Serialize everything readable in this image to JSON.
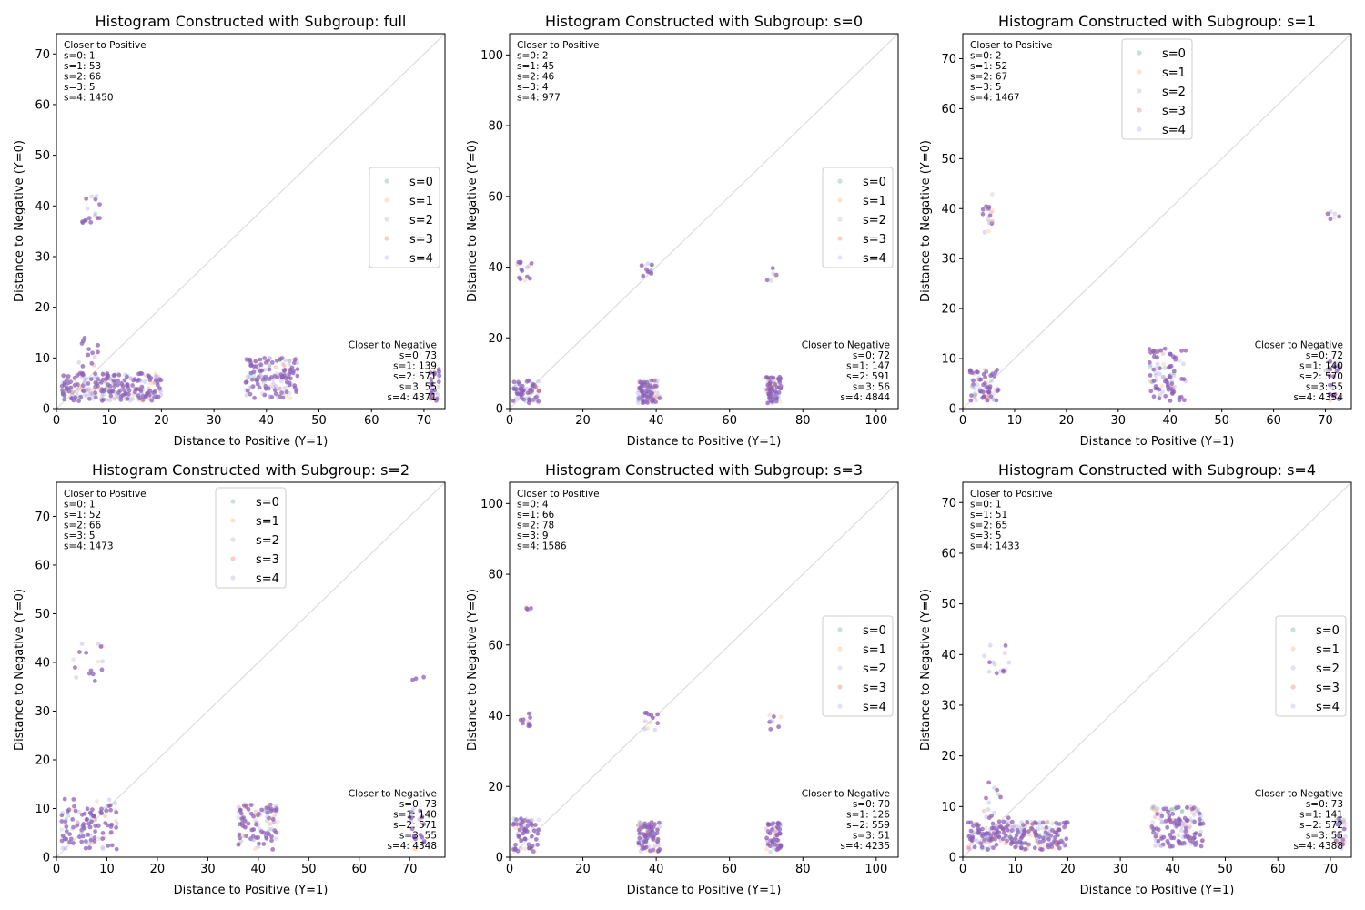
{
  "legend_labels": [
    "s=0",
    "s=1",
    "s=2",
    "s=3",
    "s=4"
  ],
  "series_colors": [
    "#4a9a8e",
    "#f5a55a",
    "#a6a2c8",
    "#e35b62",
    "#a79ad6"
  ],
  "point_color": "#8e60b8",
  "diagonal_color": "#dddddd",
  "chart_data": [
    {
      "type": "scatter",
      "title": "Histogram Constructed with Subgroup: full",
      "xlabel": "Distance to Positive (Y=1)",
      "ylabel": "Distance to Negative (Y=0)",
      "xlim": [
        0,
        74
      ],
      "ylim": [
        0,
        74
      ],
      "xticks": [
        0,
        10,
        20,
        30,
        40,
        50,
        60,
        70
      ],
      "yticks": [
        0,
        10,
        20,
        30,
        40,
        50,
        60,
        70
      ],
      "legend_position": "center-right",
      "annotation_positive": {
        "heading": "Closer to Positive",
        "lines": [
          "s=0: 1",
          "s=1: 53",
          "s=2: 66",
          "s=3: 5",
          "s=4: 1450"
        ]
      },
      "annotation_negative": {
        "heading": "Closer to Negative",
        "lines": [
          "s=0: 73",
          "s=1: 139",
          "s=2: 571",
          "s=3: 55",
          "s=4: 4371"
        ]
      },
      "clusters": [
        {
          "x": [
            1,
            20
          ],
          "y": [
            1.5,
            7
          ],
          "n": 260
        },
        {
          "x": [
            4,
            8
          ],
          "y": [
            7,
            14
          ],
          "n": 14
        },
        {
          "x": [
            4,
            9
          ],
          "y": [
            36,
            42
          ],
          "n": 16
        },
        {
          "x": [
            36,
            46
          ],
          "y": [
            2,
            10
          ],
          "n": 150
        },
        {
          "x": [
            71,
            73
          ],
          "y": [
            1.5,
            8
          ],
          "n": 26
        }
      ]
    },
    {
      "type": "scatter",
      "title": "Histogram Constructed with Subgroup: s=0",
      "xlabel": "Distance to Positive (Y=1)",
      "ylabel": "Distance to Negative (Y=0)",
      "xlim": [
        0,
        106
      ],
      "ylim": [
        0,
        106
      ],
      "xticks": [
        0,
        20,
        40,
        60,
        80,
        100
      ],
      "yticks": [
        0,
        20,
        40,
        60,
        80,
        100
      ],
      "legend_position": "center-right",
      "annotation_positive": {
        "heading": "Closer to Positive",
        "lines": [
          "s=0: 2",
          "s=1: 45",
          "s=2: 46",
          "s=3: 4",
          "s=4: 977"
        ]
      },
      "annotation_negative": {
        "heading": "Closer to Negative",
        "lines": [
          "s=0: 72",
          "s=1: 147",
          "s=2: 591",
          "s=3: 56",
          "s=4: 4844"
        ]
      },
      "clusters": [
        {
          "x": [
            1,
            8
          ],
          "y": [
            1.5,
            8
          ],
          "n": 70
        },
        {
          "x": [
            2,
            6
          ],
          "y": [
            36,
            42
          ],
          "n": 14
        },
        {
          "x": [
            35,
            41
          ],
          "y": [
            1.5,
            8
          ],
          "n": 90
        },
        {
          "x": [
            36,
            39
          ],
          "y": [
            36,
            41
          ],
          "n": 12
        },
        {
          "x": [
            70,
            74
          ],
          "y": [
            1.5,
            9
          ],
          "n": 90
        },
        {
          "x": [
            70,
            73
          ],
          "y": [
            36,
            40
          ],
          "n": 6
        }
      ]
    },
    {
      "type": "scatter",
      "title": "Histogram Constructed with Subgroup: s=1",
      "xlabel": "Distance to Positive (Y=1)",
      "ylabel": "Distance to Negative (Y=0)",
      "xlim": [
        0,
        75
      ],
      "ylim": [
        0,
        75
      ],
      "xticks": [
        0,
        10,
        20,
        30,
        40,
        50,
        60,
        70
      ],
      "yticks": [
        0,
        10,
        20,
        30,
        40,
        50,
        60,
        70
      ],
      "legend_position": "top-center",
      "annotation_positive": {
        "heading": "Closer to Positive",
        "lines": [
          "s=0: 2",
          "s=1: 52",
          "s=2: 67",
          "s=3: 5",
          "s=4: 1467"
        ]
      },
      "annotation_negative": {
        "heading": "Closer to Negative",
        "lines": [
          "s=0: 72",
          "s=1: 140",
          "s=2: 570",
          "s=3: 55",
          "s=4: 4354"
        ]
      },
      "clusters": [
        {
          "x": [
            1,
            7
          ],
          "y": [
            1.5,
            8
          ],
          "n": 70
        },
        {
          "x": [
            3,
            6
          ],
          "y": [
            35,
            43
          ],
          "n": 16
        },
        {
          "x": [
            36,
            43
          ],
          "y": [
            1.5,
            12
          ],
          "n": 90
        },
        {
          "x": [
            70,
            73
          ],
          "y": [
            1.5,
            10
          ],
          "n": 24
        },
        {
          "x": [
            70,
            73
          ],
          "y": [
            36,
            40
          ],
          "n": 6
        }
      ]
    },
    {
      "type": "scatter",
      "title": "Histogram Constructed with Subgroup: s=2",
      "xlabel": "Distance to Positive (Y=1)",
      "ylabel": "Distance to Negative (Y=0)",
      "xlim": [
        0,
        77
      ],
      "ylim": [
        0,
        77
      ],
      "xticks": [
        0,
        10,
        20,
        30,
        40,
        50,
        60,
        70
      ],
      "yticks": [
        0,
        10,
        20,
        30,
        40,
        50,
        60,
        70
      ],
      "legend_position": "top-center",
      "annotation_positive": {
        "heading": "Closer to Positive",
        "lines": [
          "s=0: 1",
          "s=1: 52",
          "s=2: 66",
          "s=3: 5",
          "s=4: 1473"
        ]
      },
      "annotation_negative": {
        "heading": "Closer to Negative",
        "lines": [
          "s=0: 73",
          "s=1: 140",
          "s=2: 571",
          "s=3: 55",
          "s=4: 4348"
        ]
      },
      "clusters": [
        {
          "x": [
            1,
            12
          ],
          "y": [
            1.5,
            12
          ],
          "n": 110
        },
        {
          "x": [
            3,
            10
          ],
          "y": [
            36,
            44
          ],
          "n": 16
        },
        {
          "x": [
            36,
            44
          ],
          "y": [
            1.5,
            11
          ],
          "n": 110
        },
        {
          "x": [
            70,
            73
          ],
          "y": [
            1.5,
            10
          ],
          "n": 24
        },
        {
          "x": [
            70,
            73
          ],
          "y": [
            36,
            38
          ],
          "n": 3
        }
      ]
    },
    {
      "type": "scatter",
      "title": "Histogram Constructed with Subgroup: s=3",
      "xlabel": "Distance to Positive (Y=1)",
      "ylabel": "Distance to Negative (Y=0)",
      "xlim": [
        0,
        106
      ],
      "ylim": [
        0,
        106
      ],
      "xticks": [
        0,
        20,
        40,
        60,
        80,
        100
      ],
      "yticks": [
        0,
        20,
        40,
        60,
        80,
        100
      ],
      "legend_position": "center-right",
      "annotation_positive": {
        "heading": "Closer to Positive",
        "lines": [
          "s=0: 4",
          "s=1: 66",
          "s=2: 78",
          "s=3: 9",
          "s=4: 1586"
        ]
      },
      "annotation_negative": {
        "heading": "Closer to Negative",
        "lines": [
          "s=0: 70",
          "s=1: 126",
          "s=2: 559",
          "s=3: 51",
          "s=4: 4235"
        ]
      },
      "clusters": [
        {
          "x": [
            1,
            8
          ],
          "y": [
            1.5,
            11
          ],
          "n": 70
        },
        {
          "x": [
            3,
            6
          ],
          "y": [
            36,
            41
          ],
          "n": 10
        },
        {
          "x": [
            4,
            6
          ],
          "y": [
            70,
            71
          ],
          "n": 5
        },
        {
          "x": [
            35,
            41
          ],
          "y": [
            1.5,
            10
          ],
          "n": 90
        },
        {
          "x": [
            36,
            41
          ],
          "y": [
            36,
            41
          ],
          "n": 12
        },
        {
          "x": [
            70,
            74
          ],
          "y": [
            1.5,
            10
          ],
          "n": 60
        },
        {
          "x": [
            70,
            74
          ],
          "y": [
            36,
            41
          ],
          "n": 8
        }
      ]
    },
    {
      "type": "scatter",
      "title": "Histogram Constructed with Subgroup: s=4",
      "xlabel": "Distance to Positive (Y=1)",
      "ylabel": "Distance to Negative (Y=0)",
      "xlim": [
        0,
        74
      ],
      "ylim": [
        0,
        74
      ],
      "xticks": [
        0,
        10,
        20,
        30,
        40,
        50,
        60,
        70
      ],
      "yticks": [
        0,
        10,
        20,
        30,
        40,
        50,
        60,
        70
      ],
      "legend_position": "center-right",
      "annotation_positive": {
        "heading": "Closer to Positive",
        "lines": [
          "s=0: 1",
          "s=1: 51",
          "s=2: 65",
          "s=3: 5",
          "s=4: 1433"
        ]
      },
      "annotation_negative": {
        "heading": "Closer to Negative",
        "lines": [
          "s=0: 73",
          "s=1: 141",
          "s=2: 572",
          "s=3: 55",
          "s=4: 4388"
        ]
      },
      "clusters": [
        {
          "x": [
            1,
            20
          ],
          "y": [
            1.5,
            7
          ],
          "n": 260
        },
        {
          "x": [
            4,
            9
          ],
          "y": [
            7,
            15
          ],
          "n": 16
        },
        {
          "x": [
            4,
            9
          ],
          "y": [
            36,
            42
          ],
          "n": 14
        },
        {
          "x": [
            36,
            46
          ],
          "y": [
            2,
            10
          ],
          "n": 150
        },
        {
          "x": [
            71,
            73
          ],
          "y": [
            1.5,
            8
          ],
          "n": 26
        }
      ]
    }
  ]
}
